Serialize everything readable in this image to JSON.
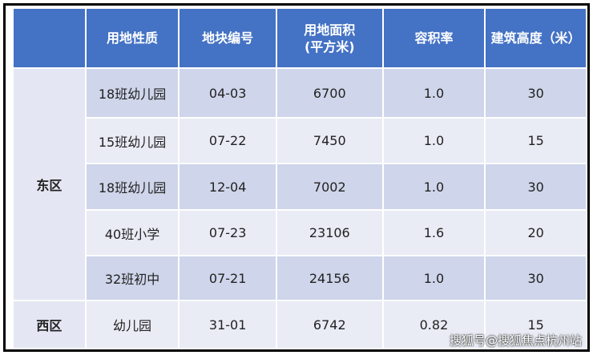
{
  "table": {
    "header": [
      "用地性质",
      "地块编号",
      "用地面积\n(平方米)",
      "容积率",
      "建筑高度（米）"
    ],
    "groups": [
      {
        "zone": "东区",
        "rows": [
          [
            "18班幼儿园",
            "04-03",
            "6700",
            "1.0",
            "30"
          ],
          [
            "15班幼儿园",
            "07-22",
            "7450",
            "1.0",
            "15"
          ],
          [
            "18班幼儿园",
            "12-04",
            "7002",
            "1.0",
            "30"
          ],
          [
            "40班小学",
            "07-23",
            "23106",
            "1.6",
            "20"
          ],
          [
            "32班初中",
            "07-21",
            "24156",
            "1.0",
            "30"
          ]
        ]
      },
      {
        "zone": "西区",
        "rows": [
          [
            "幼儿园",
            "31-01",
            "6742",
            "0.82",
            "15"
          ]
        ]
      }
    ]
  },
  "watermark": "搜狐号@搜狐焦点杭州站"
}
